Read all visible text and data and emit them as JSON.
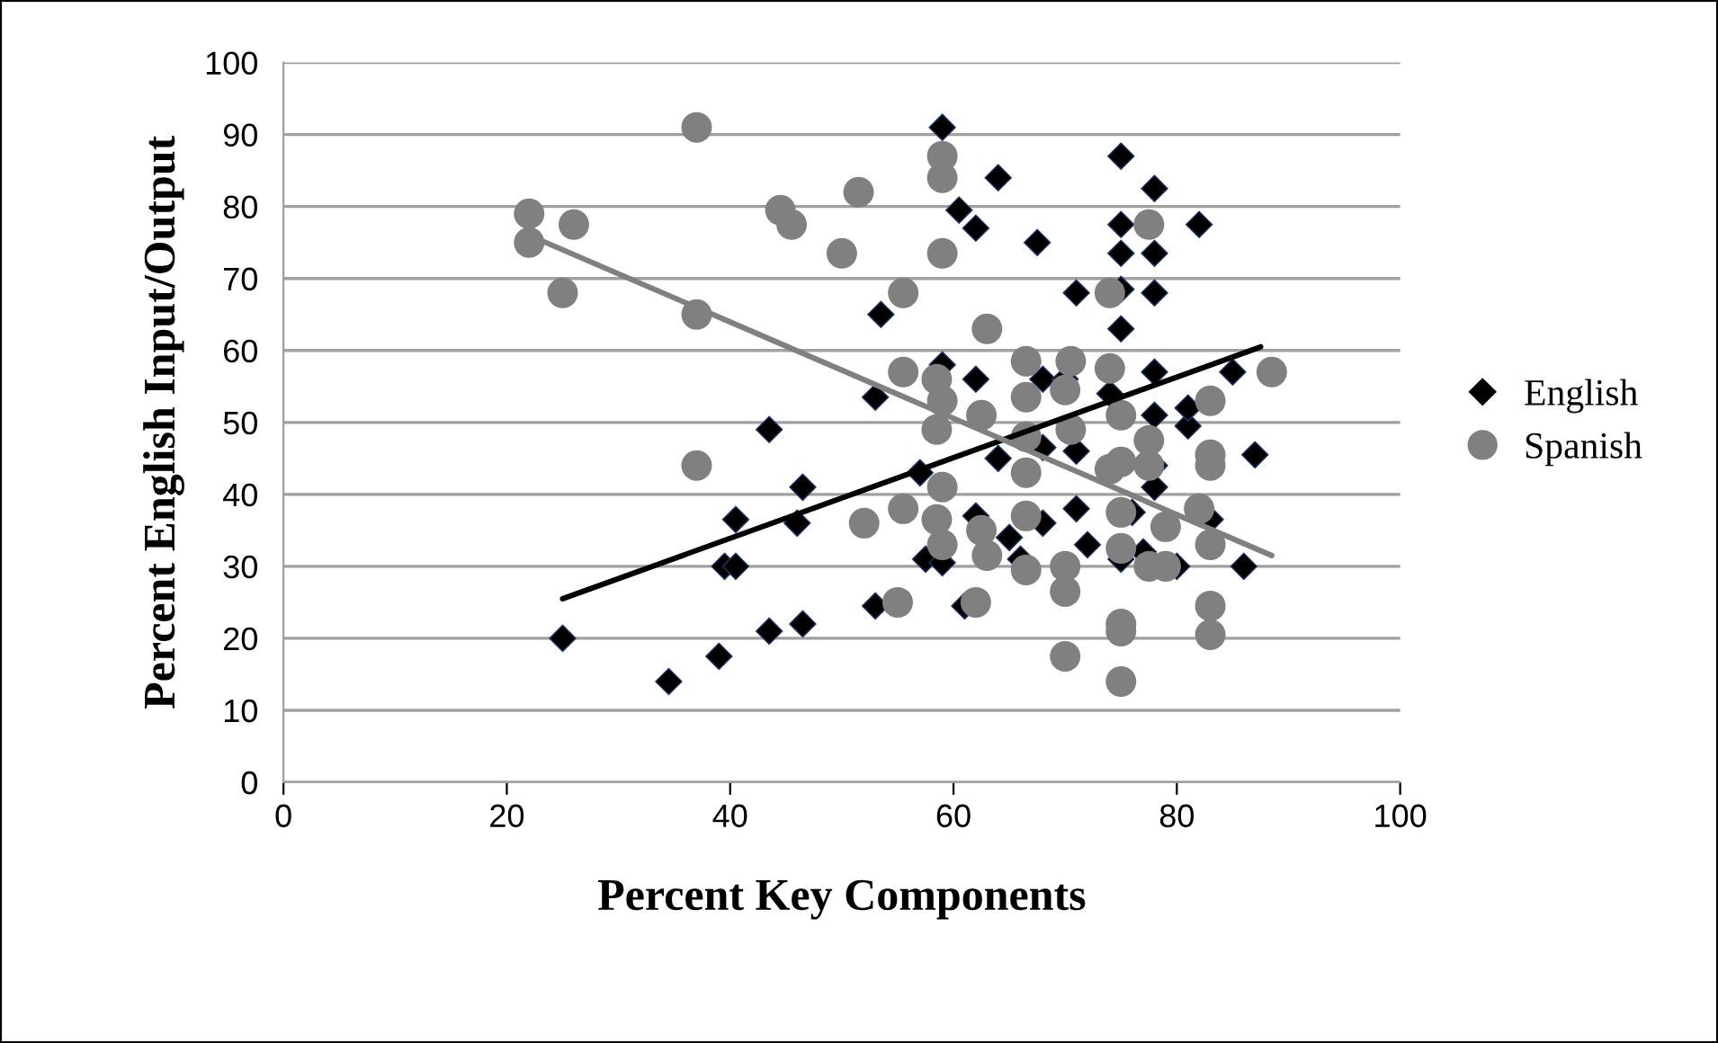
{
  "chart_data": {
    "type": "scatter",
    "xlabel": "Percent Key Components",
    "ylabel": "Percent English Input/Output",
    "xlim": [
      0,
      100
    ],
    "xticks": [
      0,
      20,
      40,
      60,
      80,
      100
    ],
    "ylim": [
      0,
      100
    ],
    "yticks": [
      0,
      10,
      20,
      30,
      40,
      50,
      60,
      70,
      80,
      90,
      100
    ],
    "grid": "y",
    "legend": "right",
    "series": [
      {
        "name": "English",
        "color": "#000000",
        "marker": "diamond",
        "x": [
          25,
          34.5,
          39,
          39.5,
          40.5,
          40.5,
          43.5,
          43.5,
          46,
          46.5,
          46.5,
          53,
          53,
          53.5,
          57,
          57.5,
          59,
          59,
          59,
          60.5,
          61,
          62,
          62,
          62,
          64,
          64,
          65,
          66,
          67.5,
          68,
          68,
          68,
          70,
          71,
          71,
          71,
          72,
          74,
          75,
          75,
          75,
          75,
          75,
          75,
          76,
          77,
          78,
          78,
          78,
          78,
          78,
          78,
          78,
          80,
          81,
          81,
          82,
          83,
          85,
          86,
          87
        ],
        "values": [
          20,
          14,
          17.5,
          30,
          30,
          36.5,
          49,
          21,
          36,
          41,
          22,
          24.5,
          53.5,
          65,
          43,
          31,
          91,
          30.5,
          58,
          79.5,
          24.5,
          77,
          56,
          37,
          84,
          45,
          34,
          31,
          75,
          56,
          36,
          46.5,
          56,
          68,
          38,
          46,
          33,
          54,
          87,
          77.5,
          73.5,
          68.5,
          63,
          31,
          37.5,
          32,
          68,
          82.5,
          73.5,
          57,
          51,
          41,
          44,
          30,
          49.5,
          52,
          77.5,
          36.5,
          57,
          30,
          45.5
        ]
      },
      {
        "name": "Spanish",
        "color": "#808080",
        "marker": "circle",
        "x": [
          22,
          22,
          26,
          25,
          37,
          37,
          37,
          44.5,
          45.5,
          50,
          51.5,
          52,
          55.5,
          55.5,
          55.5,
          55,
          58.5,
          58.5,
          58.5,
          59,
          59,
          59,
          59,
          59,
          59,
          62,
          63,
          62.5,
          62.5,
          63,
          66.5,
          66.5,
          66.5,
          66.5,
          66.5,
          66.5,
          70.5,
          70,
          70.5,
          70,
          70,
          70,
          74,
          74,
          74,
          75,
          75,
          75,
          75,
          75,
          75,
          75,
          77.5,
          77.5,
          77.5,
          77.5,
          79,
          79,
          82,
          83,
          83,
          83,
          83,
          83,
          83,
          88.5
        ],
        "values": [
          79,
          75,
          77.5,
          68,
          91,
          65,
          44,
          79.5,
          77.5,
          73.5,
          82,
          36,
          68,
          57,
          38,
          25,
          56,
          49,
          36.5,
          87,
          84,
          73.5,
          53,
          41,
          33,
          25,
          63,
          51,
          35,
          31.5,
          58.5,
          53.5,
          48,
          43,
          37,
          29.5,
          58.5,
          54.5,
          49,
          30,
          26.5,
          17.5,
          68,
          57.5,
          43.5,
          51,
          37.5,
          32.5,
          44.5,
          22,
          21,
          14,
          77.5,
          47.5,
          44,
          30,
          35.5,
          30,
          38,
          53,
          45.5,
          44,
          33,
          24.5,
          20.5,
          57
        ]
      },
      {
        "type": "line",
        "color": "#000000",
        "marker": "none",
        "x": [
          25,
          87.5
        ],
        "values": [
          25.5,
          60.5
        ]
      },
      {
        "type": "line",
        "color": "#808080",
        "marker": "none",
        "x": [
          22,
          88.5
        ],
        "values": [
          76,
          31.5
        ]
      }
    ]
  }
}
